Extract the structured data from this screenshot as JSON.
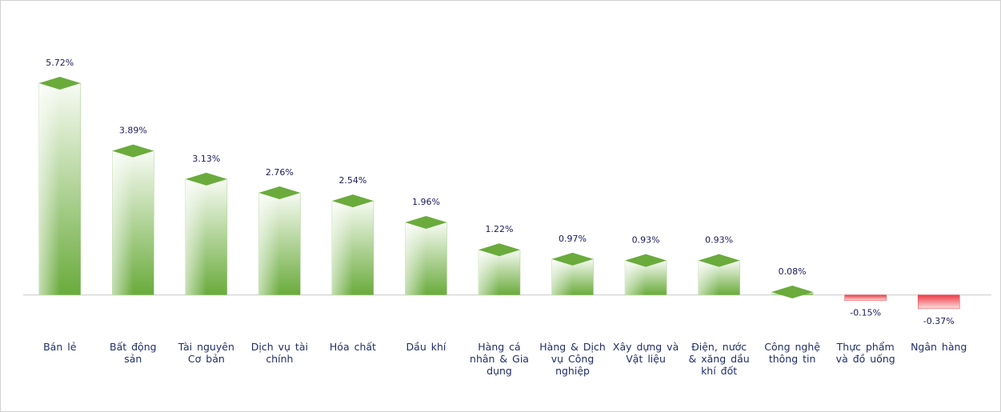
{
  "chart_data": {
    "type": "bar",
    "categories": [
      "Bán lẻ",
      "Bất động sản",
      "Tài nguyên Cơ bản",
      "Dịch vụ tài chính",
      "Hóa chất",
      "Dầu khí",
      "Hàng cá nhân & Gia dụng",
      "Hàng & Dịch vụ Công nghiệp",
      "Xây dựng và Vật liệu",
      "Điện, nước & xăng dầu khí đốt",
      "Công nghệ thông tin",
      "Thực phẩm và đồ uống",
      "Ngân hàng"
    ],
    "values": [
      5.72,
      3.89,
      3.13,
      2.76,
      2.54,
      1.96,
      1.22,
      0.97,
      0.93,
      0.93,
      0.08,
      -0.15,
      -0.37
    ],
    "value_labels": [
      "5.72%",
      "3.89%",
      "3.13%",
      "2.76%",
      "2.54%",
      "1.96%",
      "1.22%",
      "0.97%",
      "0.93%",
      "0.93%",
      "0.08%",
      "-0.15%",
      "-0.37%"
    ],
    "color": "#6aab3c",
    "negative_color": "#ee3b44",
    "ylim": [
      -1,
      6
    ],
    "grid": false
  }
}
